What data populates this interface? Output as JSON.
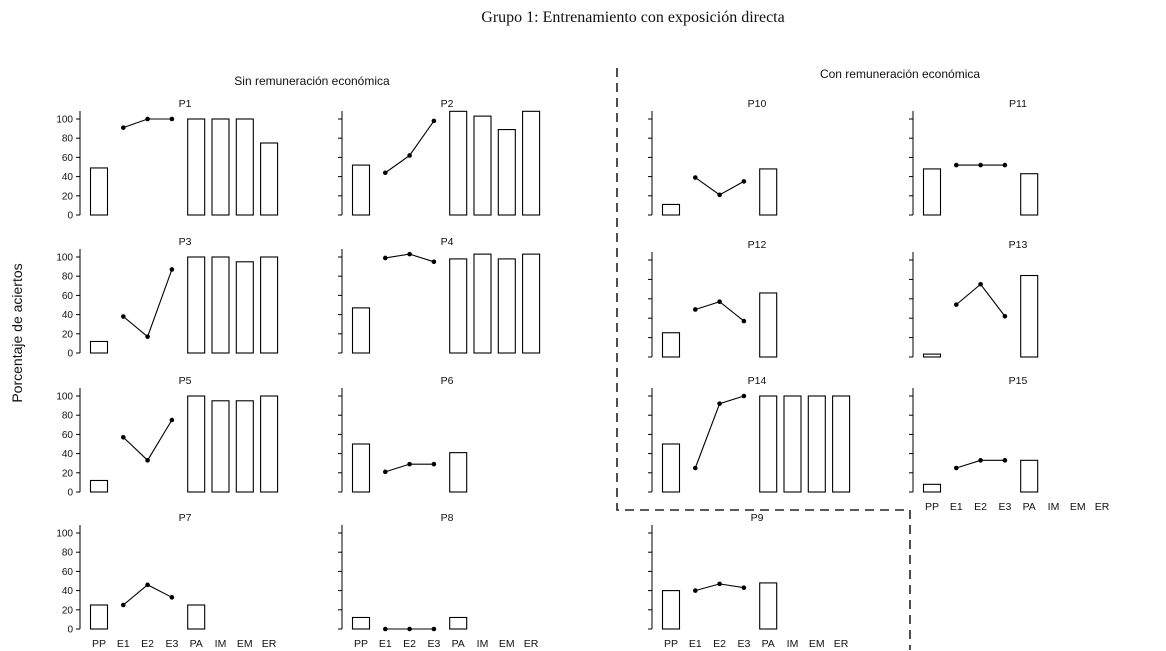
{
  "figure_title": "Grupo 1: Entrenamiento con exposición directa",
  "section_left": "Sin remuneración económica",
  "section_right": "Con remuneración económica",
  "y_axis_label": "Porcentaje de aciertos",
  "chart_data": [
    {
      "type": "bar+line",
      "title": "P1",
      "categories": [
        "PP",
        "E1",
        "E2",
        "E3",
        "PA",
        "IM",
        "EM",
        "ER"
      ],
      "ylim": [
        0,
        100
      ],
      "y_ticks": [
        "0",
        "20",
        "40",
        "60",
        "80",
        "100"
      ],
      "bars": {
        "PP": 49,
        "PA": 100,
        "IM": 100,
        "EM": 100,
        "ER": 75
      },
      "line": {
        "E1": 91,
        "E2": 100,
        "E3": 100
      }
    },
    {
      "type": "bar+line",
      "title": "P2",
      "categories": [
        "PP",
        "E1",
        "E2",
        "E3",
        "PA",
        "IM",
        "EM",
        "ER"
      ],
      "ylim": [
        0,
        100
      ],
      "bars": {
        "PP": 52,
        "PA": 108,
        "IM": 103,
        "EM": 89,
        "ER": 108
      },
      "line": {
        "E1": 44,
        "E2": 62,
        "E3": 98
      }
    },
    {
      "type": "bar+line",
      "title": "P3",
      "categories": [
        "PP",
        "E1",
        "E2",
        "E3",
        "PA",
        "IM",
        "EM",
        "ER"
      ],
      "ylim": [
        0,
        100
      ],
      "y_ticks": [
        "0",
        "20",
        "40",
        "60",
        "80",
        "100"
      ],
      "bars": {
        "PP": 12,
        "PA": 100,
        "IM": 100,
        "EM": 95,
        "ER": 100
      },
      "line": {
        "E1": 38,
        "E2": 17,
        "E3": 87
      }
    },
    {
      "type": "bar+line",
      "title": "P4",
      "categories": [
        "PP",
        "E1",
        "E2",
        "E3",
        "PA",
        "IM",
        "EM",
        "ER"
      ],
      "ylim": [
        0,
        100
      ],
      "bars": {
        "PP": 47,
        "PA": 98,
        "IM": 103,
        "EM": 98,
        "ER": 103
      },
      "line": {
        "E1": 99,
        "E2": 103,
        "E3": 95
      }
    },
    {
      "type": "bar+line",
      "title": "P5",
      "categories": [
        "PP",
        "E1",
        "E2",
        "E3",
        "PA",
        "IM",
        "EM",
        "ER"
      ],
      "ylim": [
        0,
        100
      ],
      "y_ticks": [
        "0",
        "20",
        "40",
        "60",
        "80",
        "100"
      ],
      "bars": {
        "PP": 12,
        "PA": 100,
        "IM": 95,
        "EM": 95,
        "ER": 100
      },
      "line": {
        "E1": 57,
        "E2": 33,
        "E3": 75
      }
    },
    {
      "type": "bar+line",
      "title": "P6",
      "categories": [
        "PP",
        "E1",
        "E2",
        "E3",
        "PA",
        "IM",
        "EM",
        "ER"
      ],
      "ylim": [
        0,
        100
      ],
      "bars": {
        "PP": 50,
        "PA": 41
      },
      "line": {
        "E1": 21,
        "E2": 29,
        "E3": 29
      }
    },
    {
      "type": "bar+line",
      "title": "P7",
      "categories": [
        "PP",
        "E1",
        "E2",
        "E3",
        "PA",
        "IM",
        "EM",
        "ER"
      ],
      "ylim": [
        0,
        100
      ],
      "y_ticks": [
        "0",
        "20",
        "40",
        "60",
        "80",
        "100"
      ],
      "show_x_labels": true,
      "bars": {
        "PP": 25,
        "PA": 25
      },
      "line": {
        "E1": 25,
        "E2": 46,
        "E3": 33
      }
    },
    {
      "type": "bar+line",
      "title": "P8",
      "categories": [
        "PP",
        "E1",
        "E2",
        "E3",
        "PA",
        "IM",
        "EM",
        "ER"
      ],
      "ylim": [
        0,
        100
      ],
      "show_x_labels": true,
      "bars": {
        "PP": 12,
        "PA": 12
      },
      "line": {
        "E1": 0,
        "E2": 0,
        "E3": 0
      }
    },
    {
      "type": "bar+line",
      "title": "P9",
      "categories": [
        "PP",
        "E1",
        "E2",
        "E3",
        "PA",
        "IM",
        "EM",
        "ER"
      ],
      "ylim": [
        0,
        100
      ],
      "show_x_labels": true,
      "bars": {
        "PP": 40,
        "PA": 48
      },
      "line": {
        "E1": 40,
        "E2": 47,
        "E3": 43
      }
    },
    {
      "type": "bar+line",
      "title": "P10",
      "categories": [
        "PP",
        "E1",
        "E2",
        "E3",
        "PA",
        "IM",
        "EM",
        "ER"
      ],
      "ylim": [
        0,
        100
      ],
      "bars": {
        "PP": 11,
        "PA": 48
      },
      "line": {
        "E1": 39,
        "E2": 21,
        "E3": 35
      }
    },
    {
      "type": "bar+line",
      "title": "P11",
      "categories": [
        "PP",
        "E1",
        "E2",
        "E3",
        "PA",
        "IM",
        "EM",
        "ER"
      ],
      "ylim": [
        0,
        100
      ],
      "bars": {
        "PP": 48,
        "PA": 43
      },
      "line": {
        "E1": 52,
        "E2": 52,
        "E3": 52
      }
    },
    {
      "type": "bar+line",
      "title": "P12",
      "categories": [
        "PP",
        "E1",
        "E2",
        "E3",
        "PA",
        "IM",
        "EM",
        "ER"
      ],
      "ylim": [
        0,
        100
      ],
      "bars": {
        "PP": 25,
        "PA": 66
      },
      "line": {
        "E1": 49,
        "E2": 57,
        "E3": 37
      }
    },
    {
      "type": "bar+line",
      "title": "P13",
      "categories": [
        "PP",
        "E1",
        "E2",
        "E3",
        "PA",
        "IM",
        "EM",
        "ER"
      ],
      "ylim": [
        0,
        100
      ],
      "bars": {
        "PP": 3,
        "PA": 84
      },
      "line": {
        "E1": 54,
        "E2": 75,
        "E3": 42
      }
    },
    {
      "type": "bar+line",
      "title": "P14",
      "categories": [
        "PP",
        "E1",
        "E2",
        "E3",
        "PA",
        "IM",
        "EM",
        "ER"
      ],
      "ylim": [
        0,
        100
      ],
      "bars": {
        "PP": 50,
        "PA": 100,
        "IM": 100,
        "EM": 100,
        "ER": 100
      },
      "line": {
        "E1": 25,
        "E2": 92,
        "E3": 100
      }
    },
    {
      "type": "bar+line",
      "title": "P15",
      "categories": [
        "PP",
        "E1",
        "E2",
        "E3",
        "PA",
        "IM",
        "EM",
        "ER"
      ],
      "ylim": [
        0,
        100
      ],
      "show_x_labels": true,
      "bars": {
        "PP": 8,
        "PA": 33
      },
      "line": {
        "E1": 25,
        "E2": 33,
        "E3": 33
      }
    }
  ]
}
